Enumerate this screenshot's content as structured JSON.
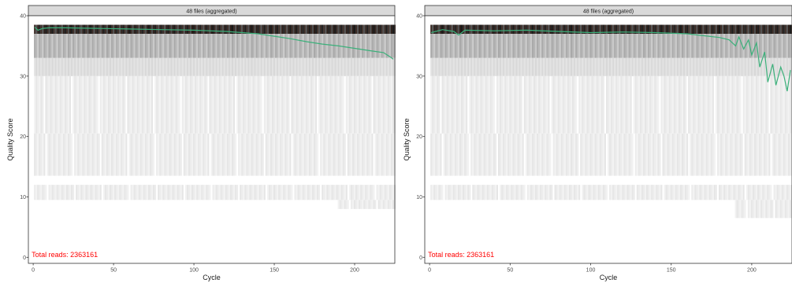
{
  "chart_data": [
    {
      "type": "heatmap",
      "title": "48 files (aggregated)",
      "xlabel": "Cycle",
      "ylabel": "Quality Score",
      "xlim": [
        -3,
        225
      ],
      "ylim": [
        -1,
        40
      ],
      "x_ticks": [
        0,
        50,
        100,
        150,
        200
      ],
      "y_ticks": [
        0,
        10,
        20,
        30,
        40
      ],
      "annotation": "Total reads: 2363161",
      "annotation_color": "#ff0000",
      "grid": false,
      "max_cycle": 225,
      "mean_quality": {
        "color": "#3bb07a",
        "points": [
          [
            1,
            38.1
          ],
          [
            3,
            37.6
          ],
          [
            6,
            37.9
          ],
          [
            10,
            38.0
          ],
          [
            20,
            38.0
          ],
          [
            40,
            37.9
          ],
          [
            60,
            37.8
          ],
          [
            80,
            37.7
          ],
          [
            100,
            37.6
          ],
          [
            120,
            37.4
          ],
          [
            130,
            37.2
          ],
          [
            140,
            37.0
          ],
          [
            150,
            36.6
          ],
          [
            160,
            36.2
          ],
          [
            170,
            35.7
          ],
          [
            180,
            35.3
          ],
          [
            190,
            35.0
          ],
          [
            200,
            34.6
          ],
          [
            210,
            34.2
          ],
          [
            218,
            33.9
          ],
          [
            222,
            33.2
          ],
          [
            224,
            32.8
          ]
        ]
      },
      "quality_bands": [
        {
          "from": 37,
          "to": 38.5,
          "shade": "dark",
          "start": 1,
          "end": 225
        },
        {
          "from": 33,
          "to": 37,
          "shade": "mid",
          "start": 1,
          "end": 225
        },
        {
          "from": 30,
          "to": 33,
          "shade": "light",
          "start": 1,
          "end": 225
        },
        {
          "from": 20.5,
          "to": 30,
          "shade": "faint",
          "start": 1,
          "end": 225
        },
        {
          "from": 13.5,
          "to": 20.5,
          "shade": "faint",
          "start": 1,
          "end": 225
        },
        {
          "from": 9.5,
          "to": 12,
          "shade": "faint",
          "start": 1,
          "end": 225
        },
        {
          "from": 8,
          "to": 9.5,
          "shade": "faint",
          "start": 190,
          "end": 225
        }
      ]
    },
    {
      "type": "heatmap",
      "title": "48 files (aggregated)",
      "xlabel": "Cycle",
      "ylabel": "Quality Score",
      "xlim": [
        -3,
        225
      ],
      "ylim": [
        -1,
        40
      ],
      "x_ticks": [
        0,
        50,
        100,
        150,
        200
      ],
      "y_ticks": [
        0,
        10,
        20,
        30,
        40
      ],
      "annotation": "Total reads: 2363161",
      "annotation_color": "#ff0000",
      "grid": false,
      "max_cycle": 225,
      "mean_quality": {
        "color": "#3bb07a",
        "points": [
          [
            1,
            37.2
          ],
          [
            8,
            37.7
          ],
          [
            15,
            37.4
          ],
          [
            18,
            36.8
          ],
          [
            22,
            37.6
          ],
          [
            40,
            37.5
          ],
          [
            60,
            37.6
          ],
          [
            80,
            37.4
          ],
          [
            100,
            37.2
          ],
          [
            120,
            37.3
          ],
          [
            140,
            37.2
          ],
          [
            160,
            37.0
          ],
          [
            170,
            36.7
          ],
          [
            180,
            36.4
          ],
          [
            186,
            36.0
          ],
          [
            190,
            35.0
          ],
          [
            192,
            36.5
          ],
          [
            195,
            34.5
          ],
          [
            198,
            36.0
          ],
          [
            200,
            33.5
          ],
          [
            203,
            35.5
          ],
          [
            205,
            31.5
          ],
          [
            208,
            34.0
          ],
          [
            210,
            29.0
          ],
          [
            213,
            32.0
          ],
          [
            215,
            28.5
          ],
          [
            218,
            31.5
          ],
          [
            220,
            30.0
          ],
          [
            222,
            27.5
          ],
          [
            224,
            31.0
          ]
        ]
      },
      "quality_bands": [
        {
          "from": 37,
          "to": 38.5,
          "shade": "dark",
          "start": 1,
          "end": 225
        },
        {
          "from": 33,
          "to": 37,
          "shade": "mid",
          "start": 1,
          "end": 225
        },
        {
          "from": 30,
          "to": 33,
          "shade": "light",
          "start": 1,
          "end": 225
        },
        {
          "from": 20.5,
          "to": 30,
          "shade": "faint",
          "start": 1,
          "end": 225
        },
        {
          "from": 13.5,
          "to": 20.5,
          "shade": "faint",
          "start": 1,
          "end": 225
        },
        {
          "from": 9.5,
          "to": 12,
          "shade": "faint",
          "start": 1,
          "end": 225
        },
        {
          "from": 6.5,
          "to": 9.5,
          "shade": "faint",
          "start": 190,
          "end": 225
        }
      ]
    }
  ]
}
